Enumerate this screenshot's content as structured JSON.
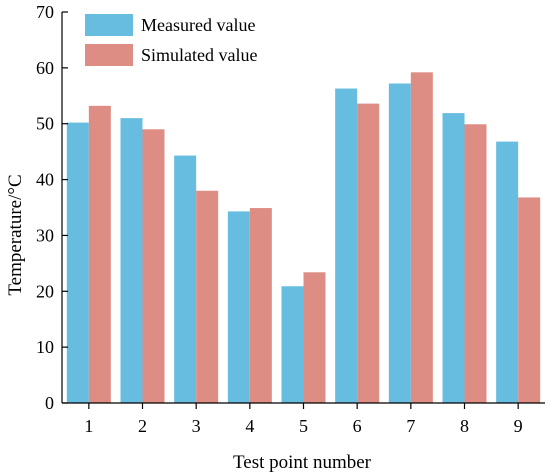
{
  "chart_data": {
    "type": "bar",
    "title": "",
    "xlabel": "Test point number",
    "ylabel": "Temperature/°C",
    "categories": [
      "1",
      "2",
      "3",
      "4",
      "5",
      "6",
      "7",
      "8",
      "9"
    ],
    "ylim": [
      0,
      70
    ],
    "yticks": [
      "0",
      "10",
      "20",
      "30",
      "40",
      "50",
      "60",
      "70"
    ],
    "series": [
      {
        "name": "Measured value",
        "color": "#66bde0",
        "values": [
          50.2,
          51.0,
          44.3,
          34.3,
          20.9,
          56.3,
          57.2,
          51.9,
          46.8
        ]
      },
      {
        "name": "Simulated value",
        "color": "#dd8d83",
        "values": [
          53.2,
          49.0,
          38.0,
          34.9,
          23.4,
          53.6,
          59.2,
          49.9,
          36.8
        ]
      }
    ],
    "grid": false,
    "legend_position": "top-left"
  }
}
